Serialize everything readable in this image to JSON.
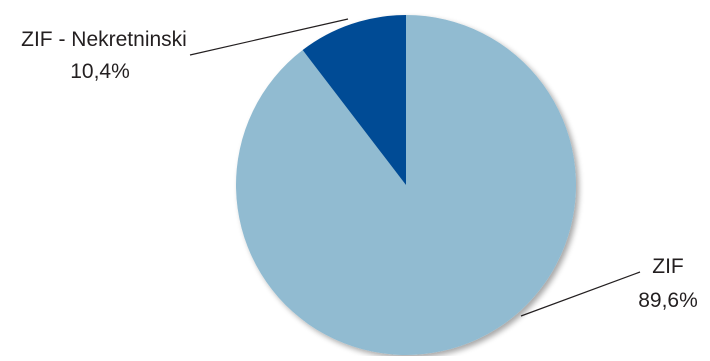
{
  "chart_data": {
    "type": "pie",
    "title": "",
    "slices": [
      {
        "label": "ZIF",
        "value": 89.6,
        "display": "89,6%",
        "color": "#91bbd1"
      },
      {
        "label": "ZIF - Nekretninski",
        "value": 10.4,
        "display": "10,4%",
        "color": "#004b95"
      }
    ],
    "start_angle_deg": 0,
    "direction": "clockwise",
    "legend": "none",
    "labels": "outside-with-leader-lines"
  }
}
